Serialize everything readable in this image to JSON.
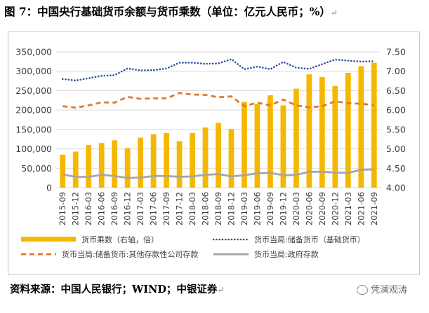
{
  "figure": {
    "title": "图 7：中国央行基础货币余额与货币乘数（单位：亿元人民币；%）",
    "title_mark": "↵",
    "source": "资料来源：中国人民银行；WIND；中银证券",
    "source_mark": "↵",
    "watermark": "凭澜观涛"
  },
  "chart_data": {
    "type": "bar+line",
    "categories": [
      "2015-09",
      "2015-12",
      "2016-03",
      "2016-06",
      "2016-09",
      "2016-12",
      "2017-03",
      "2017-06",
      "2017-09",
      "2017-12",
      "2018-03",
      "2018-06",
      "2018-09",
      "2018-12",
      "2019-03",
      "2019-06",
      "2019-09",
      "2019-12",
      "2020-03",
      "2020-06",
      "2020-09",
      "2020-12",
      "2021-03",
      "2021-06",
      "2021-09"
    ],
    "y_left": {
      "ylim": [
        0,
        350000
      ],
      "ticks": [
        "0",
        "50,000",
        "100,000",
        "150,000",
        "200,000",
        "250,000",
        "300,000",
        "350,000"
      ]
    },
    "y_right": {
      "ylim": [
        4.0,
        7.5
      ],
      "ticks": [
        "4.00",
        "4.50",
        "5.00",
        "5.50",
        "6.00",
        "6.50",
        "7.00",
        "7.50"
      ]
    },
    "series": [
      {
        "name": "货币乘数（右轴，倍）",
        "type": "bar",
        "axis": "right",
        "color": "#F5B800",
        "values": [
          4.85,
          4.93,
          5.1,
          5.15,
          5.22,
          5.02,
          5.29,
          5.38,
          5.41,
          5.2,
          5.41,
          5.55,
          5.67,
          5.51,
          6.21,
          6.15,
          6.38,
          6.12,
          6.55,
          6.92,
          6.85,
          6.62,
          6.96,
          7.13,
          7.22
        ]
      },
      {
        "name": "货币当局:储备货币（基础货币）",
        "type": "line",
        "style": "dotted",
        "axis": "left",
        "color": "#2E4EA5",
        "values": [
          280000,
          276000,
          282000,
          288000,
          290000,
          307000,
          302000,
          303000,
          307000,
          322000,
          322000,
          319000,
          320000,
          331000,
          305000,
          312000,
          305000,
          324000,
          309000,
          306000,
          318000,
          330000,
          327000,
          325000,
          326000
        ]
      },
      {
        "name": "货币当局:储备货币:其他存款性公司存款",
        "type": "line",
        "style": "dashed",
        "axis": "left",
        "color": "#E07A2E",
        "values": [
          210000,
          206000,
          212000,
          220000,
          219000,
          234000,
          229000,
          230000,
          230000,
          244000,
          240000,
          239000,
          233000,
          235000,
          210000,
          219000,
          212000,
          227000,
          212000,
          207000,
          210000,
          222000,
          218000,
          216000,
          213000
        ]
      },
      {
        "name": "货币当局:政府存款",
        "type": "line",
        "style": "solid",
        "axis": "left",
        "color": "#A6A6A6",
        "values": [
          34000,
          28000,
          28000,
          33000,
          30000,
          25000,
          26000,
          30000,
          30000,
          28000,
          29000,
          33000,
          35000,
          29000,
          32000,
          37000,
          38000,
          32000,
          33000,
          41000,
          41000,
          39000,
          38000,
          46000,
          47000
        ]
      }
    ],
    "grid": "horizontal",
    "legend_position": "bottom"
  }
}
